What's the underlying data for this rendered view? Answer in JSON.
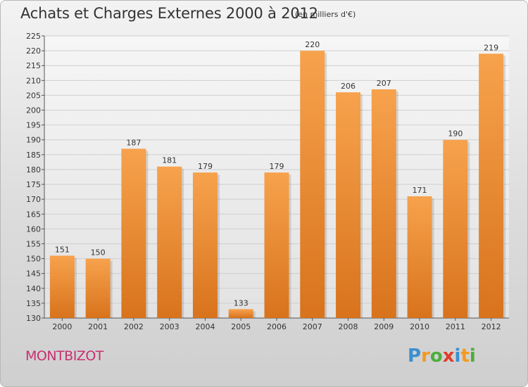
{
  "header": {
    "title": "Achats et Charges Externes 2000 à 2012",
    "subtitle": "(en milliers d'€)"
  },
  "footer": {
    "commune": "MONTBIZOT",
    "logo_letters": [
      {
        "ch": "P",
        "color": "#3a8fd0"
      },
      {
        "ch": "r",
        "color": "#f39a1e"
      },
      {
        "ch": "o",
        "color": "#4cae3a"
      },
      {
        "ch": "x",
        "color": "#e23b2a"
      },
      {
        "ch": "i",
        "color": "#3a8fd0"
      },
      {
        "ch": "t",
        "color": "#f39a1e"
      },
      {
        "ch": "i",
        "color": "#4cae3a"
      }
    ]
  },
  "chart_data": {
    "type": "bar",
    "categories": [
      "2000",
      "2001",
      "2002",
      "2003",
      "2004",
      "2005",
      "2006",
      "2007",
      "2008",
      "2009",
      "2010",
      "2011",
      "2012"
    ],
    "values": [
      151,
      150,
      187,
      181,
      179,
      133,
      179,
      220,
      206,
      207,
      171,
      190,
      219
    ],
    "ylim": [
      130,
      225
    ],
    "ytick_step": 5,
    "grid": true,
    "bar_color_light": "#f7a24d",
    "bar_color_dark": "#d8731c"
  }
}
